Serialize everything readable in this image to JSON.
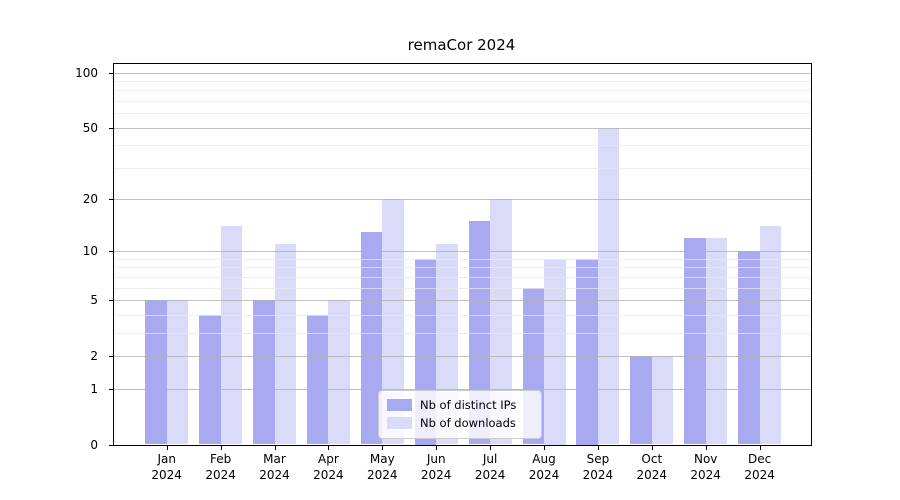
{
  "chart_data": {
    "type": "bar",
    "title": "remaCor 2024",
    "categories": [
      "Jan",
      "Feb",
      "Mar",
      "Apr",
      "May",
      "Jun",
      "Jul",
      "Aug",
      "Sep",
      "Oct",
      "Nov",
      "Dec"
    ],
    "year_label": "2024",
    "series": [
      {
        "name": "Nb of distinct IPs",
        "color": "#a9a9f2",
        "values": [
          5,
          4,
          5,
          4,
          13,
          9,
          15,
          6,
          9,
          2,
          12,
          10
        ]
      },
      {
        "name": "Nb of downloads",
        "color": "#dadaf9",
        "values": [
          5,
          14,
          11,
          5,
          20,
          11,
          20,
          9,
          50,
          2,
          12,
          14
        ]
      }
    ],
    "yscale": "log1p",
    "ylim": [
      0,
      110
    ],
    "yticks": [
      0,
      1,
      2,
      5,
      10,
      20,
      50,
      100
    ],
    "minor_gridlines": [
      3,
      4,
      6,
      7,
      8,
      9,
      30,
      40,
      60,
      70,
      80,
      90
    ],
    "grid": true,
    "legend_position": "lower center",
    "xlabel": "",
    "ylabel": ""
  },
  "colors": {
    "background": "#ffffff",
    "spine": "#000000",
    "major_grid": "#b0b0b0",
    "minor_grid": "#e8e8e8",
    "text": "#000000"
  }
}
